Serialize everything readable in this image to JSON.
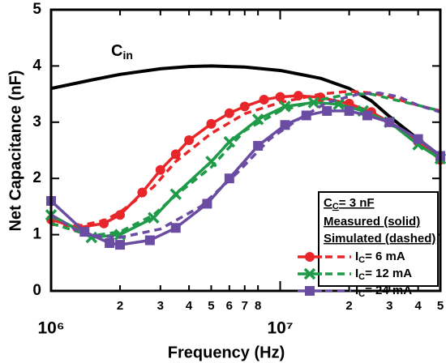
{
  "chart_data": {
    "type": "line",
    "x_label": "Frequency (Hz)",
    "y_label": "Net Capacitance (nF)",
    "xscale": "log",
    "xlim": [
      1000000,
      50000000
    ],
    "ylim": [
      0,
      5
    ],
    "xticks": [
      {
        "value": 1000000,
        "label": "10⁶"
      },
      {
        "value": 2000000,
        "label": "2"
      },
      {
        "value": 3000000,
        "label": "3"
      },
      {
        "value": 4000000,
        "label": "4"
      },
      {
        "value": 5000000,
        "label": "5"
      },
      {
        "value": 6000000,
        "label": "6"
      },
      {
        "value": 7000000,
        "label": "7"
      },
      {
        "value": 8000000,
        "label": "8"
      },
      {
        "value": 10000000,
        "label": "10⁷"
      },
      {
        "value": 20000000,
        "label": "2"
      },
      {
        "value": 30000000,
        "label": "3"
      },
      {
        "value": 40000000,
        "label": "4"
      },
      {
        "value": 50000000,
        "label": "5"
      }
    ],
    "yticks": [
      0,
      1,
      2,
      3,
      4,
      5
    ],
    "annotation": {
      "text": "C",
      "sub": "in"
    },
    "legend": {
      "title": "C",
      "title_sub": "C",
      "title_tail": "= 3 nF",
      "measured": "Measured (solid)",
      "simulated": "Simulated (dashed)"
    },
    "series": [
      {
        "color": "#000000",
        "style": "solid",
        "marker": "none",
        "x": [
          1000000,
          1500000,
          2000000,
          3000000,
          4000000,
          5000000,
          7000000,
          10000000,
          15000000,
          20000000,
          25000000,
          30000000,
          40000000,
          50000000
        ],
        "values": [
          3.6,
          3.75,
          3.85,
          3.95,
          3.99,
          4.0,
          3.98,
          3.92,
          3.78,
          3.6,
          3.38,
          3.1,
          2.7,
          2.4
        ]
      },
      {
        "name": "I",
        "name_sub": "C",
        "name_tail": "= 6 mA",
        "color": "#e8262a",
        "style": "solid",
        "marker": "circle",
        "x": [
          1000000,
          1300000,
          1700000,
          2000000,
          2500000,
          3000000,
          3500000,
          4000000,
          5000000,
          6000000,
          7000000,
          8500000,
          10000000,
          12000000,
          15000000,
          20000000,
          25000000,
          30000000,
          40000000,
          50000000
        ],
        "values": [
          1.27,
          1.12,
          1.2,
          1.35,
          1.75,
          2.15,
          2.43,
          2.68,
          2.97,
          3.16,
          3.28,
          3.4,
          3.45,
          3.47,
          3.44,
          3.33,
          3.18,
          3.0,
          2.65,
          2.33
        ]
      },
      {
        "color": "#e8262a",
        "style": "dashed",
        "marker": "none",
        "x": [
          1000000,
          1300000,
          1700000,
          2000000,
          2800000,
          3500000,
          5000000,
          7000000,
          10000000,
          15000000,
          20000000,
          25000000,
          30000000,
          40000000,
          50000000
        ],
        "values": [
          1.18,
          1.15,
          1.25,
          1.4,
          1.85,
          2.3,
          2.8,
          3.15,
          3.35,
          3.5,
          3.55,
          3.52,
          3.45,
          3.3,
          3.2
        ]
      },
      {
        "name": "I",
        "name_sub": "C",
        "name_tail": "= 12 mA",
        "color": "#1f9a48",
        "style": "solid",
        "marker": "cross",
        "x": [
          1000000,
          1500000,
          2000000,
          2800000,
          3500000,
          5000000,
          6000000,
          8000000,
          10500000,
          14000000,
          18000000,
          23000000,
          30000000,
          40000000,
          50000000
        ],
        "values": [
          1.35,
          0.95,
          1.0,
          1.3,
          1.72,
          2.3,
          2.65,
          3.05,
          3.28,
          3.35,
          3.32,
          3.2,
          3.0,
          2.6,
          2.35
        ]
      },
      {
        "color": "#1f9a48",
        "style": "dashed",
        "marker": "none",
        "x": [
          1000000,
          1500000,
          2000000,
          2800000,
          3500000,
          5000000,
          7000000,
          10000000,
          15000000,
          20000000,
          25000000,
          30000000,
          40000000,
          50000000
        ],
        "values": [
          1.2,
          0.98,
          1.05,
          1.35,
          1.7,
          2.2,
          2.85,
          3.2,
          3.4,
          3.5,
          3.5,
          3.42,
          3.3,
          3.2
        ]
      },
      {
        "name": "I",
        "name_sub": "C",
        "name_tail": "= 24 mA",
        "color": "#6a4ca3",
        "style": "solid",
        "marker": "square",
        "x": [
          1000000,
          1400000,
          1800000,
          2000000,
          2700000,
          3500000,
          4800000,
          6000000,
          8000000,
          10500000,
          13000000,
          16000000,
          20000000,
          24000000,
          30000000,
          40000000,
          50000000
        ],
        "values": [
          1.6,
          1.05,
          0.85,
          0.82,
          0.9,
          1.12,
          1.55,
          2.0,
          2.58,
          2.95,
          3.12,
          3.2,
          3.2,
          3.12,
          3.0,
          2.7,
          2.4
        ]
      },
      {
        "color": "#6a4ca3",
        "style": "dashed",
        "marker": "none",
        "x": [
          1000000,
          1400000,
          2000000,
          3000000,
          4500000,
          6500000,
          9000000,
          12000000,
          16000000,
          22000000,
          27000000,
          33000000,
          40000000,
          50000000
        ],
        "values": [
          1.35,
          1.0,
          0.95,
          1.1,
          1.5,
          2.1,
          2.7,
          3.05,
          3.35,
          3.5,
          3.52,
          3.45,
          3.3,
          3.18
        ]
      }
    ]
  }
}
